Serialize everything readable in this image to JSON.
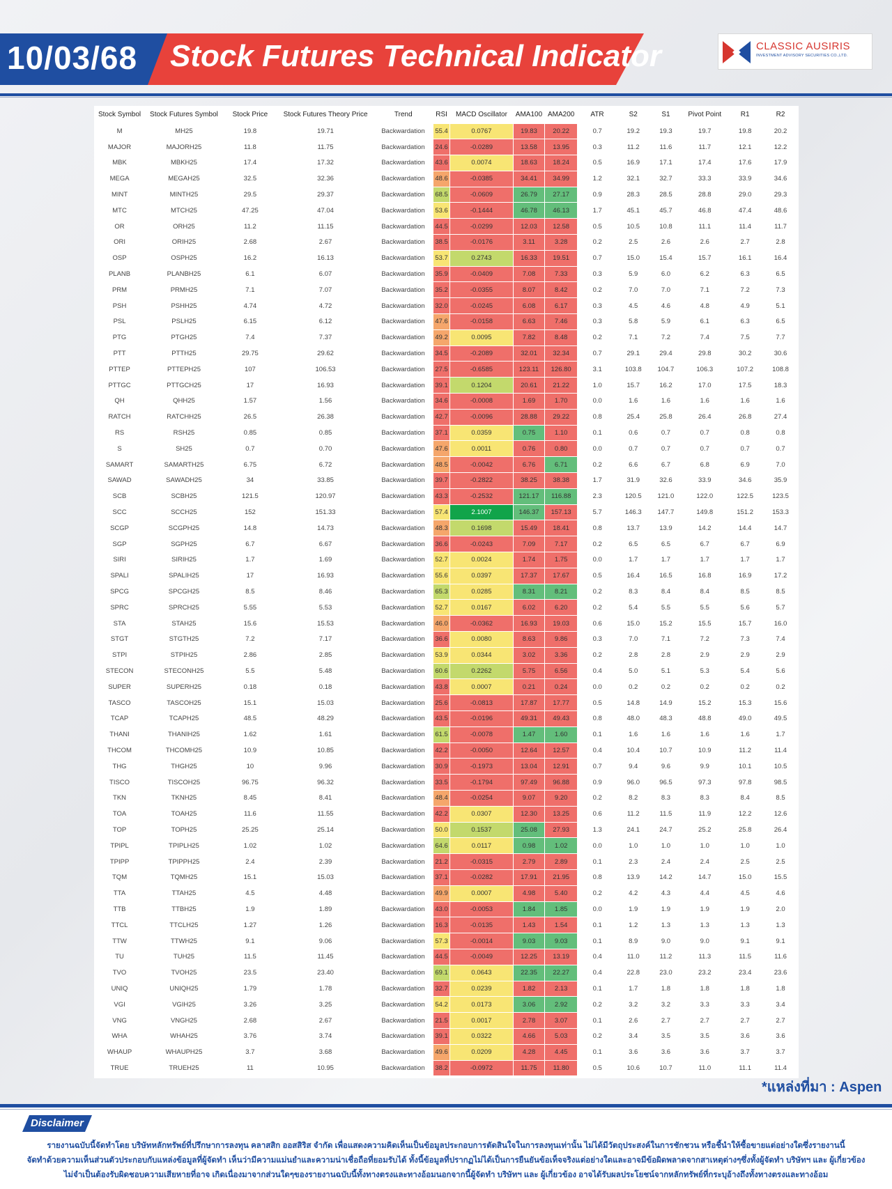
{
  "header": {
    "date": "10/03/68",
    "title": "Stock Futures Technical Indicator"
  },
  "logo": {
    "name": "CLASSIC AUSIRIS",
    "subtitle": "INVESTMENT ADVISORY SECURITIES CO.,LTD."
  },
  "colors": {
    "accent_blue": "#1f4ea1",
    "accent_red": "#e8423b",
    "strong_green": "#11a44a",
    "green": "#63be7b",
    "yellow_green": "#c3d96c",
    "yellow": "#f8e574",
    "orange": "#f5a66b",
    "red": "#ef6f6a"
  },
  "table": {
    "columns": [
      "Stock Symbol",
      "Stock Futures Symbol",
      "Stock Price",
      "Stock Futures Theory Price",
      "Trend",
      "RSI",
      "MACD Oscillator",
      "AMA100",
      "AMA200",
      "ATR",
      "S2",
      "S1",
      "Pivot Point",
      "R1",
      "R2"
    ],
    "rows": [
      [
        "M",
        "MH25",
        "19.8",
        "19.71",
        "Backwardation",
        "55.4",
        "0.0767",
        "19.83",
        "20.22",
        "0.7",
        "19.2",
        "19.3",
        "19.7",
        "19.8",
        "20.2"
      ],
      [
        "MAJOR",
        "MAJORH25",
        "11.8",
        "11.75",
        "Backwardation",
        "24.6",
        "-0.0289",
        "13.58",
        "13.95",
        "0.3",
        "11.2",
        "11.6",
        "11.7",
        "12.1",
        "12.2"
      ],
      [
        "MBK",
        "MBKH25",
        "17.4",
        "17.32",
        "Backwardation",
        "43.6",
        "0.0074",
        "18.63",
        "18.24",
        "0.5",
        "16.9",
        "17.1",
        "17.4",
        "17.6",
        "17.9"
      ],
      [
        "MEGA",
        "MEGAH25",
        "32.5",
        "32.36",
        "Backwardation",
        "48.6",
        "-0.0385",
        "34.41",
        "34.99",
        "1.2",
        "32.1",
        "32.7",
        "33.3",
        "33.9",
        "34.6"
      ],
      [
        "MINT",
        "MINTH25",
        "29.5",
        "29.37",
        "Backwardation",
        "68.5",
        "-0.0609",
        "26.79",
        "27.17",
        "0.9",
        "28.3",
        "28.5",
        "28.8",
        "29.0",
        "29.3"
      ],
      [
        "MTC",
        "MTCH25",
        "47.25",
        "47.04",
        "Backwardation",
        "53.6",
        "-0.1444",
        "46.78",
        "46.13",
        "1.7",
        "45.1",
        "45.7",
        "46.8",
        "47.4",
        "48.6"
      ],
      [
        "OR",
        "ORH25",
        "11.2",
        "11.15",
        "Backwardation",
        "44.5",
        "-0.0299",
        "12.03",
        "12.58",
        "0.5",
        "10.5",
        "10.8",
        "11.1",
        "11.4",
        "11.7"
      ],
      [
        "ORI",
        "ORIH25",
        "2.68",
        "2.67",
        "Backwardation",
        "38.5",
        "-0.0176",
        "3.11",
        "3.28",
        "0.2",
        "2.5",
        "2.6",
        "2.6",
        "2.7",
        "2.8"
      ],
      [
        "OSP",
        "OSPH25",
        "16.2",
        "16.13",
        "Backwardation",
        "53.7",
        "0.2743",
        "16.33",
        "19.51",
        "0.7",
        "15.0",
        "15.4",
        "15.7",
        "16.1",
        "16.4"
      ],
      [
        "PLANB",
        "PLANBH25",
        "6.1",
        "6.07",
        "Backwardation",
        "35.9",
        "-0.0409",
        "7.08",
        "7.33",
        "0.3",
        "5.9",
        "6.0",
        "6.2",
        "6.3",
        "6.5"
      ],
      [
        "PRM",
        "PRMH25",
        "7.1",
        "7.07",
        "Backwardation",
        "35.2",
        "-0.0355",
        "8.07",
        "8.42",
        "0.2",
        "7.0",
        "7.0",
        "7.1",
        "7.2",
        "7.3"
      ],
      [
        "PSH",
        "PSHH25",
        "4.74",
        "4.72",
        "Backwardation",
        "32.0",
        "-0.0245",
        "6.08",
        "6.17",
        "0.3",
        "4.5",
        "4.6",
        "4.8",
        "4.9",
        "5.1"
      ],
      [
        "PSL",
        "PSLH25",
        "6.15",
        "6.12",
        "Backwardation",
        "47.6",
        "-0.0158",
        "6.63",
        "7.46",
        "0.3",
        "5.8",
        "5.9",
        "6.1",
        "6.3",
        "6.5"
      ],
      [
        "PTG",
        "PTGH25",
        "7.4",
        "7.37",
        "Backwardation",
        "49.2",
        "0.0095",
        "7.82",
        "8.48",
        "0.2",
        "7.1",
        "7.2",
        "7.4",
        "7.5",
        "7.7"
      ],
      [
        "PTT",
        "PTTH25",
        "29.75",
        "29.62",
        "Backwardation",
        "34.5",
        "-0.2089",
        "32.01",
        "32.34",
        "0.7",
        "29.1",
        "29.4",
        "29.8",
        "30.2",
        "30.6"
      ],
      [
        "PTTEP",
        "PTTEPH25",
        "107",
        "106.53",
        "Backwardation",
        "27.5",
        "-0.6585",
        "123.11",
        "126.80",
        "3.1",
        "103.8",
        "104.7",
        "106.3",
        "107.2",
        "108.8"
      ],
      [
        "PTTGC",
        "PTTGCH25",
        "17",
        "16.93",
        "Backwardation",
        "39.1",
        "0.1204",
        "20.61",
        "21.22",
        "1.0",
        "15.7",
        "16.2",
        "17.0",
        "17.5",
        "18.3"
      ],
      [
        "QH",
        "QHH25",
        "1.57",
        "1.56",
        "Backwardation",
        "34.6",
        "-0.0008",
        "1.69",
        "1.70",
        "0.0",
        "1.6",
        "1.6",
        "1.6",
        "1.6",
        "1.6"
      ],
      [
        "RATCH",
        "RATCHH25",
        "26.5",
        "26.38",
        "Backwardation",
        "42.7",
        "-0.0096",
        "28.88",
        "29.22",
        "0.8",
        "25.4",
        "25.8",
        "26.4",
        "26.8",
        "27.4"
      ],
      [
        "RS",
        "RSH25",
        "0.85",
        "0.85",
        "Backwardation",
        "37.1",
        "0.0359",
        "0.75",
        "1.10",
        "0.1",
        "0.6",
        "0.7",
        "0.7",
        "0.8",
        "0.8"
      ],
      [
        "S",
        "SH25",
        "0.7",
        "0.70",
        "Backwardation",
        "47.6",
        "0.0011",
        "0.76",
        "0.80",
        "0.0",
        "0.7",
        "0.7",
        "0.7",
        "0.7",
        "0.7"
      ],
      [
        "SAMART",
        "SAMARTH25",
        "6.75",
        "6.72",
        "Backwardation",
        "48.5",
        "-0.0042",
        "6.76",
        "6.71",
        "0.2",
        "6.6",
        "6.7",
        "6.8",
        "6.9",
        "7.0"
      ],
      [
        "SAWAD",
        "SAWADH25",
        "34",
        "33.85",
        "Backwardation",
        "39.7",
        "-0.2822",
        "38.25",
        "38.38",
        "1.7",
        "31.9",
        "32.6",
        "33.9",
        "34.6",
        "35.9"
      ],
      [
        "SCB",
        "SCBH25",
        "121.5",
        "120.97",
        "Backwardation",
        "43.3",
        "-0.2532",
        "121.17",
        "116.88",
        "2.3",
        "120.5",
        "121.0",
        "122.0",
        "122.5",
        "123.5"
      ],
      [
        "SCC",
        "SCCH25",
        "152",
        "151.33",
        "Backwardation",
        "57.4",
        "2.1007",
        "146.37",
        "157.13",
        "5.7",
        "146.3",
        "147.7",
        "149.8",
        "151.2",
        "153.3"
      ],
      [
        "SCGP",
        "SCGPH25",
        "14.8",
        "14.73",
        "Backwardation",
        "48.3",
        "0.1698",
        "15.49",
        "18.41",
        "0.8",
        "13.7",
        "13.9",
        "14.2",
        "14.4",
        "14.7"
      ],
      [
        "SGP",
        "SGPH25",
        "6.7",
        "6.67",
        "Backwardation",
        "36.6",
        "-0.0243",
        "7.09",
        "7.17",
        "0.2",
        "6.5",
        "6.5",
        "6.7",
        "6.7",
        "6.9"
      ],
      [
        "SIRI",
        "SIRIH25",
        "1.7",
        "1.69",
        "Backwardation",
        "52.7",
        "0.0024",
        "1.74",
        "1.75",
        "0.0",
        "1.7",
        "1.7",
        "1.7",
        "1.7",
        "1.7"
      ],
      [
        "SPALI",
        "SPALIH25",
        "17",
        "16.93",
        "Backwardation",
        "55.6",
        "0.0397",
        "17.37",
        "17.67",
        "0.5",
        "16.4",
        "16.5",
        "16.8",
        "16.9",
        "17.2"
      ],
      [
        "SPCG",
        "SPCGH25",
        "8.5",
        "8.46",
        "Backwardation",
        "65.3",
        "0.0285",
        "8.31",
        "8.21",
        "0.2",
        "8.3",
        "8.4",
        "8.4",
        "8.5",
        "8.5"
      ],
      [
        "SPRC",
        "SPRCH25",
        "5.55",
        "5.53",
        "Backwardation",
        "52.7",
        "0.0167",
        "6.02",
        "6.20",
        "0.2",
        "5.4",
        "5.5",
        "5.5",
        "5.6",
        "5.7"
      ],
      [
        "STA",
        "STAH25",
        "15.6",
        "15.53",
        "Backwardation",
        "46.0",
        "-0.0362",
        "16.93",
        "19.03",
        "0.6",
        "15.0",
        "15.2",
        "15.5",
        "15.7",
        "16.0"
      ],
      [
        "STGT",
        "STGTH25",
        "7.2",
        "7.17",
        "Backwardation",
        "36.6",
        "0.0080",
        "8.63",
        "9.86",
        "0.3",
        "7.0",
        "7.1",
        "7.2",
        "7.3",
        "7.4"
      ],
      [
        "STPI",
        "STPIH25",
        "2.86",
        "2.85",
        "Backwardation",
        "53.9",
        "0.0344",
        "3.02",
        "3.36",
        "0.2",
        "2.8",
        "2.8",
        "2.9",
        "2.9",
        "2.9"
      ],
      [
        "STECON",
        "STECONH25",
        "5.5",
        "5.48",
        "Backwardation",
        "60.6",
        "0.2262",
        "5.75",
        "6.56",
        "0.4",
        "5.0",
        "5.1",
        "5.3",
        "5.4",
        "5.6"
      ],
      [
        "SUPER",
        "SUPERH25",
        "0.18",
        "0.18",
        "Backwardation",
        "43.8",
        "0.0007",
        "0.21",
        "0.24",
        "0.0",
        "0.2",
        "0.2",
        "0.2",
        "0.2",
        "0.2"
      ],
      [
        "TASCO",
        "TASCOH25",
        "15.1",
        "15.03",
        "Backwardation",
        "25.6",
        "-0.0813",
        "17.87",
        "17.77",
        "0.5",
        "14.8",
        "14.9",
        "15.2",
        "15.3",
        "15.6"
      ],
      [
        "TCAP",
        "TCAPH25",
        "48.5",
        "48.29",
        "Backwardation",
        "43.5",
        "-0.0196",
        "49.31",
        "49.43",
        "0.8",
        "48.0",
        "48.3",
        "48.8",
        "49.0",
        "49.5"
      ],
      [
        "THANI",
        "THANIH25",
        "1.62",
        "1.61",
        "Backwardation",
        "61.5",
        "-0.0078",
        "1.47",
        "1.60",
        "0.1",
        "1.6",
        "1.6",
        "1.6",
        "1.6",
        "1.7"
      ],
      [
        "THCOM",
        "THCOMH25",
        "10.9",
        "10.85",
        "Backwardation",
        "42.2",
        "-0.0050",
        "12.64",
        "12.57",
        "0.4",
        "10.4",
        "10.7",
        "10.9",
        "11.2",
        "11.4"
      ],
      [
        "THG",
        "THGH25",
        "10",
        "9.96",
        "Backwardation",
        "30.9",
        "-0.1973",
        "13.04",
        "12.91",
        "0.7",
        "9.4",
        "9.6",
        "9.9",
        "10.1",
        "10.5"
      ],
      [
        "TISCO",
        "TISCOH25",
        "96.75",
        "96.32",
        "Backwardation",
        "33.5",
        "-0.1794",
        "97.49",
        "96.88",
        "0.9",
        "96.0",
        "96.5",
        "97.3",
        "97.8",
        "98.5"
      ],
      [
        "TKN",
        "TKNH25",
        "8.45",
        "8.41",
        "Backwardation",
        "48.4",
        "-0.0254",
        "9.07",
        "9.20",
        "0.2",
        "8.2",
        "8.3",
        "8.3",
        "8.4",
        "8.5"
      ],
      [
        "TOA",
        "TOAH25",
        "11.6",
        "11.55",
        "Backwardation",
        "42.2",
        "0.0307",
        "12.30",
        "13.25",
        "0.6",
        "11.2",
        "11.5",
        "11.9",
        "12.2",
        "12.6"
      ],
      [
        "TOP",
        "TOPH25",
        "25.25",
        "25.14",
        "Backwardation",
        "50.0",
        "0.1537",
        "25.08",
        "27.93",
        "1.3",
        "24.1",
        "24.7",
        "25.2",
        "25.8",
        "26.4"
      ],
      [
        "TPIPL",
        "TPIPLH25",
        "1.02",
        "1.02",
        "Backwardation",
        "64.6",
        "0.0117",
        "0.98",
        "1.02",
        "0.0",
        "1.0",
        "1.0",
        "1.0",
        "1.0",
        "1.0"
      ],
      [
        "TPIPP",
        "TPIPPH25",
        "2.4",
        "2.39",
        "Backwardation",
        "21.2",
        "-0.0315",
        "2.79",
        "2.89",
        "0.1",
        "2.3",
        "2.4",
        "2.4",
        "2.5",
        "2.5"
      ],
      [
        "TQM",
        "TQMH25",
        "15.1",
        "15.03",
        "Backwardation",
        "37.1",
        "-0.0282",
        "17.91",
        "21.95",
        "0.8",
        "13.9",
        "14.2",
        "14.7",
        "15.0",
        "15.5"
      ],
      [
        "TTA",
        "TTAH25",
        "4.5",
        "4.48",
        "Backwardation",
        "49.9",
        "0.0007",
        "4.98",
        "5.40",
        "0.2",
        "4.2",
        "4.3",
        "4.4",
        "4.5",
        "4.6"
      ],
      [
        "TTB",
        "TTBH25",
        "1.9",
        "1.89",
        "Backwardation",
        "43.0",
        "-0.0053",
        "1.84",
        "1.85",
        "0.0",
        "1.9",
        "1.9",
        "1.9",
        "1.9",
        "2.0"
      ],
      [
        "TTCL",
        "TTCLH25",
        "1.27",
        "1.26",
        "Backwardation",
        "16.3",
        "-0.0135",
        "1.43",
        "1.54",
        "0.1",
        "1.2",
        "1.3",
        "1.3",
        "1.3",
        "1.3"
      ],
      [
        "TTW",
        "TTWH25",
        "9.1",
        "9.06",
        "Backwardation",
        "57.3",
        "-0.0014",
        "9.03",
        "9.03",
        "0.1",
        "8.9",
        "9.0",
        "9.0",
        "9.1",
        "9.1"
      ],
      [
        "TU",
        "TUH25",
        "11.5",
        "11.45",
        "Backwardation",
        "44.5",
        "-0.0049",
        "12.25",
        "13.19",
        "0.4",
        "11.0",
        "11.2",
        "11.3",
        "11.5",
        "11.6"
      ],
      [
        "TVO",
        "TVOH25",
        "23.5",
        "23.40",
        "Backwardation",
        "69.1",
        "0.0643",
        "22.35",
        "22.27",
        "0.4",
        "22.8",
        "23.0",
        "23.2",
        "23.4",
        "23.6"
      ],
      [
        "UNIQ",
        "UNIQH25",
        "1.79",
        "1.78",
        "Backwardation",
        "32.7",
        "0.0239",
        "1.82",
        "2.13",
        "0.1",
        "1.7",
        "1.8",
        "1.8",
        "1.8",
        "1.8"
      ],
      [
        "VGI",
        "VGIH25",
        "3.26",
        "3.25",
        "Backwardation",
        "54.2",
        "0.0173",
        "3.06",
        "2.92",
        "0.2",
        "3.2",
        "3.2",
        "3.3",
        "3.3",
        "3.4"
      ],
      [
        "VNG",
        "VNGH25",
        "2.68",
        "2.67",
        "Backwardation",
        "21.5",
        "0.0017",
        "2.78",
        "3.07",
        "0.1",
        "2.6",
        "2.7",
        "2.7",
        "2.7",
        "2.7"
      ],
      [
        "WHA",
        "WHAH25",
        "3.76",
        "3.74",
        "Backwardation",
        "39.1",
        "0.0322",
        "4.66",
        "5.03",
        "0.2",
        "3.4",
        "3.5",
        "3.5",
        "3.6",
        "3.6"
      ],
      [
        "WHAUP",
        "WHAUPH25",
        "3.7",
        "3.68",
        "Backwardation",
        "49.6",
        "0.0209",
        "4.28",
        "4.45",
        "0.1",
        "3.6",
        "3.6",
        "3.6",
        "3.7",
        "3.7"
      ],
      [
        "TRUE",
        "TRUEH25",
        "11",
        "10.95",
        "Backwardation",
        "38.2",
        "-0.0972",
        "11.75",
        "11.80",
        "0.5",
        "10.6",
        "10.7",
        "11.0",
        "11.1",
        "11.4"
      ]
    ]
  },
  "source_note": "*แหล่งที่มา : Aspen",
  "disclaimer": {
    "label": "Disclaimer",
    "lines": [
      "รายงานฉบับนี้จัดทำโดย บริษัทหลักทรัพย์ที่ปรึกษาการลงทุน คลาสสิก ออสสิริส จำกัด เพื่อแสดงความคิดเห็นเป็นข้อมูลประกอบการตัดสินใจในการลงทุนเท่านั้น ไม่ได้มีวัตถุประสงค์ในการชักชวน หรือชี้นำให้ซื้อขายแต่อย่างใดซึ่งรายงานนี้",
      "จัดทำด้วยความเห็นส่วนตัวประกอบกับแหล่งข้อมูลที่ผู้จัดทำ เห็นว่ามีความแม่นยำและความน่าเชื่อถือที่ยอมรับได้ ทั้งนี้ข้อมูลที่ปรากฏไม่ได้เป็นการยืนยันข้อเท็จจริงแต่อย่างใดและอาจมีข้อผิดพลาดจากสาเหตุต่างๆซึ่งทั้งผู้จัดทำ บริษัทฯ และ ผู้เกี่ยวข้อง",
      "ไม่จำเป็นต้องรับผิดชอบความเสียหายที่อาจ เกิดเนื่องมาจากส่วนใดๆของรายงานฉบับนี้ทั้งทางตรงและทางอ้อมนอกจากนี้ผู้จัดทำ บริษัทฯ และ ผู้เกี่ยวข้อง อาจได้รับผลประโยชน์จากหลักทรัพย์ที่กระบุอ้างถึงทั้งทางตรงและทางอ้อม"
    ]
  }
}
